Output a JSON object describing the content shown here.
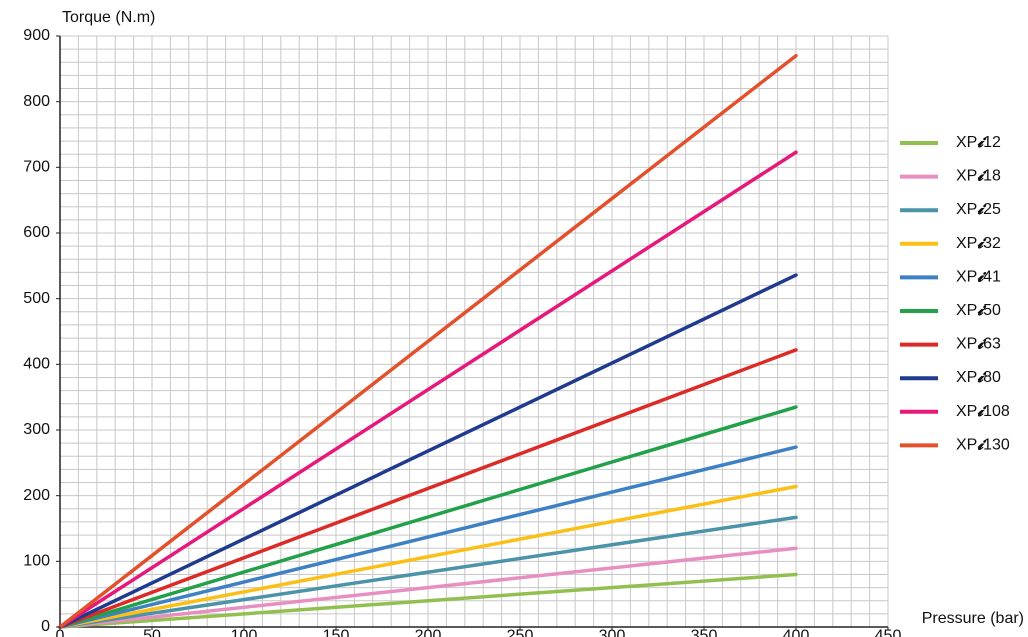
{
  "chart_data": {
    "type": "line",
    "title": "",
    "xlabel": "Pressure (bar)",
    "ylabel": "Torque (N.m)",
    "xlim": [
      0,
      450
    ],
    "ylim": [
      0,
      900
    ],
    "x_ticks": [
      0,
      50,
      100,
      150,
      200,
      250,
      300,
      350,
      400,
      450
    ],
    "y_ticks": [
      0,
      100,
      200,
      300,
      400,
      500,
      600,
      700,
      800,
      900
    ],
    "grid": true,
    "legend_position": "right",
    "x": [
      0,
      400
    ],
    "series": [
      {
        "name": "XPi12",
        "legend_prefix": "XP",
        "legend_glyph": "𝓲",
        "legend_suffix": "12",
        "color": "#92c050",
        "values": [
          0,
          80
        ]
      },
      {
        "name": "XPi18",
        "legend_prefix": "XP",
        "legend_glyph": "𝓲",
        "legend_suffix": "18",
        "color": "#e68fc0",
        "values": [
          0,
          120
        ]
      },
      {
        "name": "XPi25",
        "legend_prefix": "XP",
        "legend_glyph": "𝓲",
        "legend_suffix": "25",
        "color": "#4a93a8",
        "values": [
          0,
          167
        ]
      },
      {
        "name": "XPi32",
        "legend_prefix": "XP",
        "legend_glyph": "𝓲",
        "legend_suffix": "32",
        "color": "#fbbf16",
        "values": [
          0,
          214
        ]
      },
      {
        "name": "XPi41",
        "legend_prefix": "XP",
        "legend_glyph": "𝓲",
        "legend_suffix": "41",
        "color": "#3e80c4",
        "values": [
          0,
          274
        ]
      },
      {
        "name": "XPi50",
        "legend_prefix": "XP",
        "legend_glyph": "𝓲",
        "legend_suffix": "50",
        "color": "#22a14a",
        "values": [
          0,
          335
        ]
      },
      {
        "name": "XPi63",
        "legend_prefix": "XP",
        "legend_glyph": "𝓲",
        "legend_suffix": "63",
        "color": "#dc2b27",
        "values": [
          0,
          422
        ]
      },
      {
        "name": "XPi80",
        "legend_prefix": "XP",
        "legend_glyph": "𝓲",
        "legend_suffix": "80",
        "color": "#1f3a8e",
        "values": [
          0,
          536
        ]
      },
      {
        "name": "XPi108",
        "legend_prefix": "XP",
        "legend_glyph": "𝓲",
        "legend_suffix": "108",
        "color": "#e6197b",
        "values": [
          0,
          723
        ]
      },
      {
        "name": "XPi130",
        "legend_prefix": "XP",
        "legend_glyph": "𝓲",
        "legend_suffix": "130",
        "color": "#e2502c",
        "values": [
          0,
          870
        ]
      }
    ]
  },
  "colors": {
    "grid": "#c8c8c8",
    "axis": "#222222",
    "text": "#111111",
    "background": "#ffffff"
  }
}
